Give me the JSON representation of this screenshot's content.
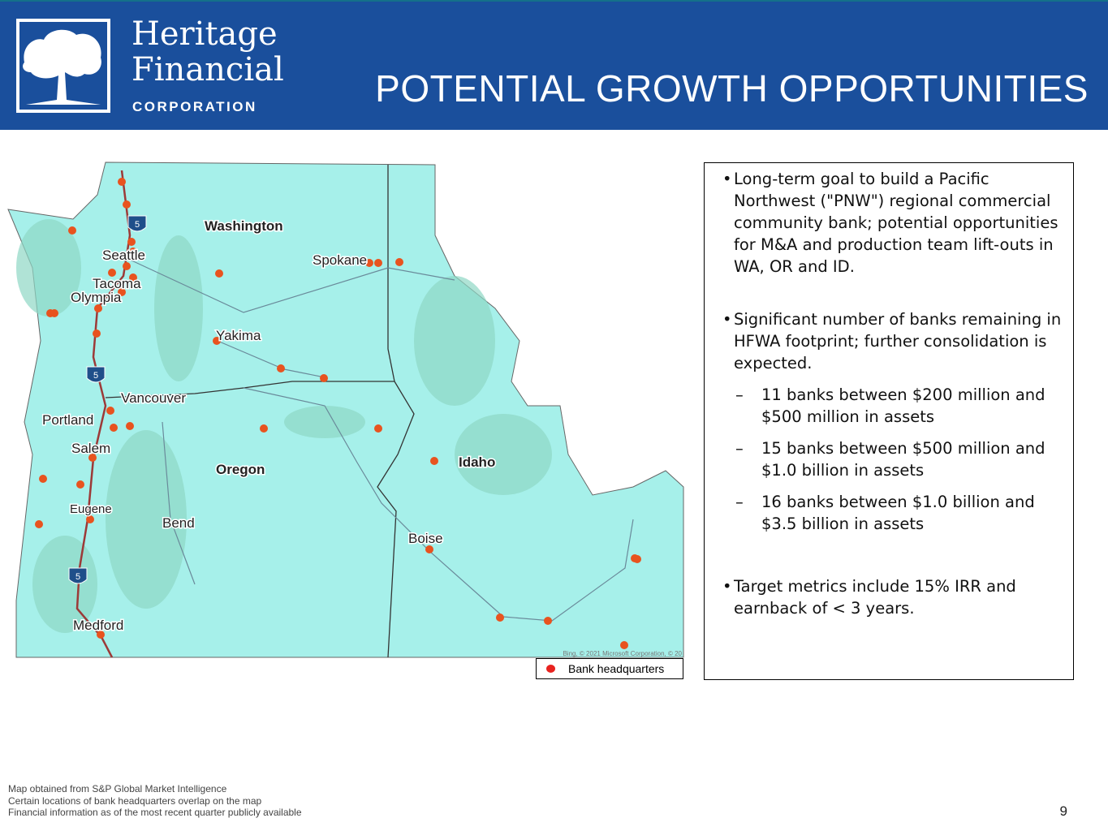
{
  "header": {
    "logo_line1": "Heritage",
    "logo_line2": "Financial",
    "logo_line3": "CORPORATION",
    "title": "POTENTIAL GROWTH OPPORTUNITIES",
    "color": "#1a4f9c"
  },
  "map": {
    "states": [
      "Washington",
      "Oregon",
      "Idaho"
    ],
    "cities": [
      "Seattle",
      "Tacoma",
      "Olympia",
      "Spokane",
      "Yakima",
      "Vancouver",
      "Portland",
      "Salem",
      "Eugene",
      "Bend",
      "Medford",
      "Boise"
    ],
    "interstate": "5",
    "attribution": "Bing, © 2021 Microsoft Corporation, © 20",
    "dot_color": "#e8231f"
  },
  "legend": {
    "label": "Bank headquarters"
  },
  "bullets": {
    "b1": "Long-term goal to build a Pacific Northwest (\"PNW\") regional commercial community bank; potential opportunities for M&A and production team lift-outs in WA, OR and ID.",
    "b2": "Significant number of banks remaining in HFWA footprint; further consolidation is expected.",
    "subs": [
      "11 banks between $200 million and $500 million in assets",
      "15 banks between $500 million and $1.0 billion in assets",
      "16 banks between $1.0 billion and $3.5 billion in assets"
    ],
    "b3": "Target metrics include 15% IRR and earnback of < 3 years."
  },
  "footer": {
    "notes": [
      "Map obtained from S&P Global Market Intelligence",
      "Certain locations of bank headquarters overlap on the map",
      "Financial information as of the most recent quarter publicly available"
    ],
    "page": "9"
  }
}
